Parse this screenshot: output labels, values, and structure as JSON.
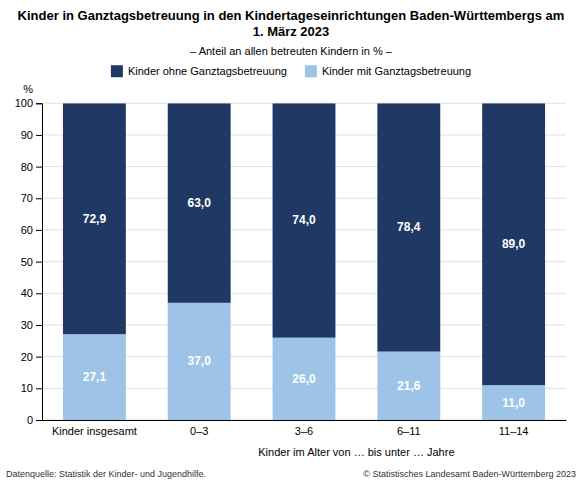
{
  "chart_data": {
    "type": "bar",
    "stacked": true,
    "title": "Kinder in Ganztagsbetreuung in den Kindertageseinrichtungen Baden-Württembergs am 1. März 2023",
    "subtitle": "– Anteil an allen betreuten Kindern in % –",
    "ylabel": "%",
    "xlabel": "Kinder im Alter von … bis unter … Jahre",
    "categories": [
      "Kinder insgesamt",
      "0–3",
      "3–6",
      "6–11",
      "11–14"
    ],
    "series": [
      {
        "name": "Kinder mit Ganztagsbetreuung",
        "color": "#9dc3e6",
        "values": [
          27.1,
          37.0,
          26.0,
          21.6,
          11.0
        ],
        "value_labels": [
          "27,1",
          "37,0",
          "26,0",
          "21,6",
          "11,0"
        ]
      },
      {
        "name": "Kinder ohne Ganztagsbetreuung",
        "color": "#1f3864",
        "values": [
          72.9,
          63.0,
          74.0,
          78.4,
          89.0
        ],
        "value_labels": [
          "72,9",
          "63,0",
          "74,0",
          "78,4",
          "89,0"
        ]
      }
    ],
    "ylim": [
      0,
      100
    ],
    "yticks": [
      0,
      10,
      20,
      30,
      40,
      50,
      60,
      70,
      80,
      90,
      100
    ],
    "grid": true,
    "legend": "top",
    "data_labels": true,
    "annotations": [
      "Datenquelle: Statistik der Kinder- und Jugendhilfe.",
      "© Statistisches Landesamt Baden-Württemberg 2023"
    ]
  }
}
